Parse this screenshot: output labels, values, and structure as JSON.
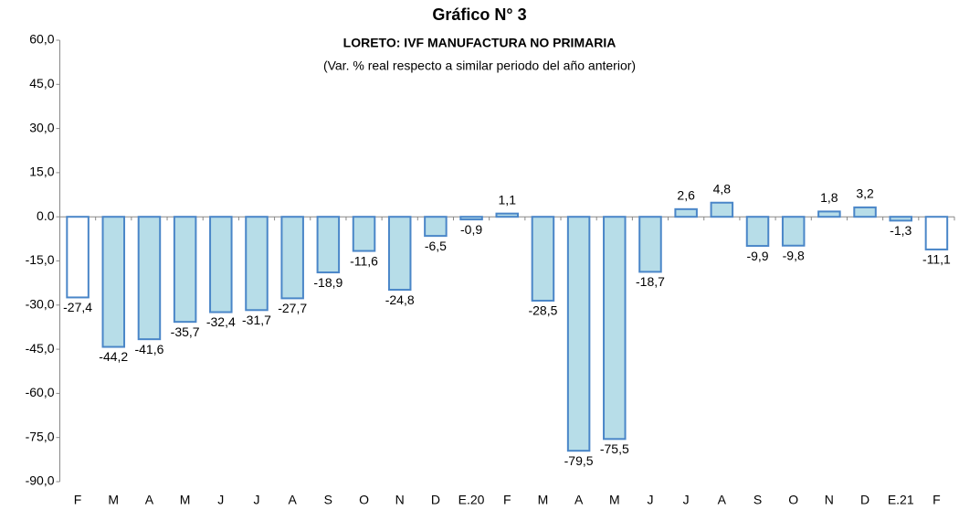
{
  "chart_data": {
    "type": "bar",
    "title": "Gráfico N° 3",
    "subtitle": "LORETO: IVF MANUFACTURA NO PRIMARIA",
    "note": "(Var. % real respecto a similar periodo del año anterior)",
    "categories": [
      "F",
      "M",
      "A",
      "M",
      "J",
      "J",
      "A",
      "S",
      "O",
      "N",
      "D",
      "E.20",
      "F",
      "M",
      "A",
      "M",
      "J",
      "J",
      "A",
      "S",
      "O",
      "N",
      "D",
      "E.21",
      "F"
    ],
    "values": [
      -27.4,
      -44.2,
      -41.6,
      -35.7,
      -32.4,
      -31.7,
      -27.7,
      -18.9,
      -11.6,
      -24.8,
      -6.5,
      -0.9,
      1.1,
      -28.5,
      -79.5,
      -75.5,
      -18.7,
      2.6,
      4.8,
      -9.9,
      -9.8,
      1.8,
      3.2,
      -1.3,
      -11.1
    ],
    "value_labels": [
      "-27,4",
      "-44,2",
      "-41,6",
      "-35,7",
      "-32,4",
      "-31,7",
      "-27,7",
      "-18,9",
      "-11,6",
      "-24,8",
      "-6,5",
      "-0,9",
      "1,1",
      "-28,5",
      "-79,5",
      "-75,5",
      "-18,7",
      "2,6",
      "4,8",
      "-9,9",
      "-9,8",
      "1,8",
      "3,2",
      "-1,3",
      "-11,1"
    ],
    "colors": [
      "#ffffff",
      "#b7dde8",
      "#b7dde8",
      "#b7dde8",
      "#b7dde8",
      "#b7dde8",
      "#b7dde8",
      "#b7dde8",
      "#b7dde8",
      "#b7dde8",
      "#b7dde8",
      "#b7dde8",
      "#b7dde8",
      "#b7dde8",
      "#b7dde8",
      "#b7dde8",
      "#b7dde8",
      "#b7dde8",
      "#b7dde8",
      "#b7dde8",
      "#b7dde8",
      "#b7dde8",
      "#b7dde8",
      "#b7dde8",
      "#ffffff"
    ],
    "border_color": "#4a86c8",
    "ylim": [
      -90,
      60
    ],
    "yticks": [
      {
        "value": -90,
        "label": "-90,0"
      },
      {
        "value": -75,
        "label": "-75,0"
      },
      {
        "value": -60,
        "label": "-60,0"
      },
      {
        "value": -45,
        "label": "-45,0"
      },
      {
        "value": -30,
        "label": "-30,0"
      },
      {
        "value": -15,
        "label": "-15,0"
      },
      {
        "value": 0,
        "label": "0.0"
      },
      {
        "value": 15,
        "label": "15,0"
      },
      {
        "value": 30,
        "label": "30,0"
      },
      {
        "value": 45,
        "label": "45,0"
      },
      {
        "value": 60,
        "label": "60,0"
      }
    ],
    "grid": false
  }
}
